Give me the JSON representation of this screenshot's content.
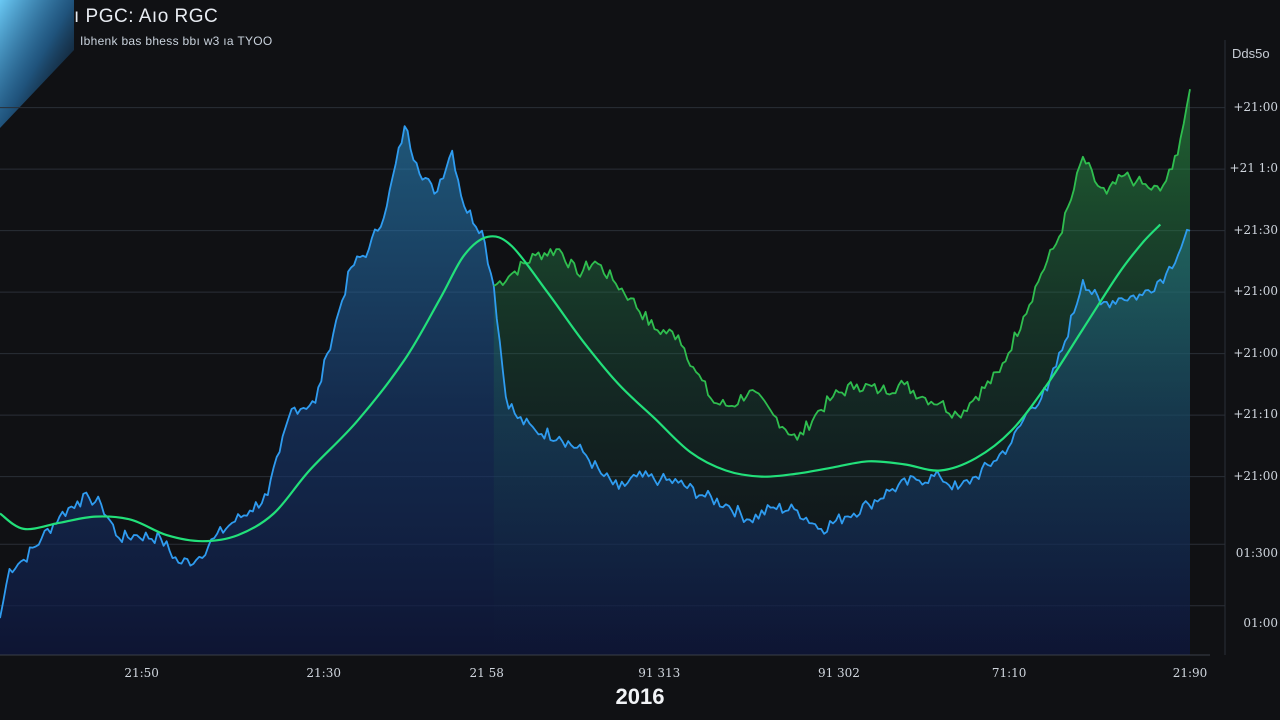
{
  "title": "ı PGC: Aıo RGC",
  "subtitle": "Ibhenk bas bhess bbı w3 ıa TYOO",
  "y_axis_header": "Dds5o",
  "chart_data": {
    "type": "line",
    "x_min": 0,
    "x_max": 100,
    "ylim": [
      0,
      100
    ],
    "xlabel": "2016",
    "x_tick_labels": [
      {
        "x": 11.9,
        "label": "21:50"
      },
      {
        "x": 27.2,
        "label": "21:30"
      },
      {
        "x": 40.9,
        "label": "21 58"
      },
      {
        "x": 55.4,
        "label": "91 313"
      },
      {
        "x": 70.5,
        "label": "91 302"
      },
      {
        "x": 84.8,
        "label": "71:10"
      },
      {
        "x": 100,
        "label": "21:90"
      }
    ],
    "y_tick_labels": [
      {
        "y": 89.0,
        "label": "+21:00"
      },
      {
        "y": 79.0,
        "label": "+21 1:0"
      },
      {
        "y": 69.0,
        "label": "+21:30"
      },
      {
        "y": 59.0,
        "label": "+21:00"
      },
      {
        "y": 49.0,
        "label": "+21:00"
      },
      {
        "y": 39.0,
        "label": "+21:10"
      },
      {
        "y": 29.0,
        "label": "+21:00"
      },
      {
        "y": 16.5,
        "label": "01:300"
      },
      {
        "y": 5.0,
        "label": "01:00"
      }
    ],
    "gridlines": [
      89,
      79,
      69,
      59,
      49,
      39,
      29,
      18,
      8
    ],
    "grid": true,
    "series": [
      {
        "color": "#2f9cf0",
        "fill": true,
        "values": [
          [
            0,
            6
          ],
          [
            0.8,
            14
          ],
          [
            2,
            15.5
          ],
          [
            3.5,
            19
          ],
          [
            5,
            22.5
          ],
          [
            6.5,
            25
          ],
          [
            7.5,
            25.5
          ],
          [
            8.5,
            24.5
          ],
          [
            10,
            19
          ],
          [
            11.5,
            19.5
          ],
          [
            13.5,
            19
          ],
          [
            15,
            15
          ],
          [
            16.5,
            15.5
          ],
          [
            18,
            19
          ],
          [
            19.5,
            21.5
          ],
          [
            21,
            23.5
          ],
          [
            22.5,
            26
          ],
          [
            23.5,
            33
          ],
          [
            24.5,
            40
          ],
          [
            26.5,
            41
          ],
          [
            27.5,
            49
          ],
          [
            28.5,
            56
          ],
          [
            29.5,
            63
          ],
          [
            31,
            66
          ],
          [
            32.5,
            73
          ],
          [
            34,
            86
          ],
          [
            35,
            80
          ],
          [
            36.5,
            75
          ],
          [
            38,
            82
          ],
          [
            39,
            73
          ],
          [
            40.5,
            69
          ],
          [
            41.5,
            60
          ],
          [
            42.5,
            42
          ],
          [
            43.5,
            38.5
          ],
          [
            45,
            36.5
          ],
          [
            47,
            35.5
          ],
          [
            49,
            33
          ],
          [
            50.5,
            29.5
          ],
          [
            52,
            27
          ],
          [
            53.5,
            29
          ],
          [
            55.5,
            28.5
          ],
          [
            57,
            28
          ],
          [
            59,
            26
          ],
          [
            61,
            24.5
          ],
          [
            63,
            22
          ],
          [
            65,
            24
          ],
          [
            67,
            23.5
          ],
          [
            69,
            20.5
          ],
          [
            71,
            22.5
          ],
          [
            73,
            24.5
          ],
          [
            75,
            27
          ],
          [
            77,
            28.5
          ],
          [
            79,
            29
          ],
          [
            80.5,
            27
          ],
          [
            82,
            29
          ],
          [
            83.5,
            31.5
          ],
          [
            85,
            34.5
          ],
          [
            86.5,
            40
          ],
          [
            88,
            43
          ],
          [
            89.5,
            51
          ],
          [
            91,
            61
          ],
          [
            92.5,
            57
          ],
          [
            94,
            58
          ],
          [
            96,
            58.5
          ],
          [
            98,
            62
          ],
          [
            100,
            69
          ]
        ]
      },
      {
        "color": "#2fbe4f",
        "fill": true,
        "values": [
          [
            41.5,
            60
          ],
          [
            43,
            62
          ],
          [
            45,
            65
          ],
          [
            47,
            66
          ],
          [
            48.5,
            62
          ],
          [
            50,
            64
          ],
          [
            51.5,
            61
          ],
          [
            53,
            58
          ],
          [
            55,
            53
          ],
          [
            57,
            52
          ],
          [
            58.5,
            46
          ],
          [
            60,
            41
          ],
          [
            61.5,
            40.5
          ],
          [
            63,
            43
          ],
          [
            65,
            39
          ],
          [
            67,
            35
          ],
          [
            68.5,
            39
          ],
          [
            70,
            42
          ],
          [
            72,
            44
          ],
          [
            74,
            43
          ],
          [
            76,
            44
          ],
          [
            77.5,
            42
          ],
          [
            79,
            41
          ],
          [
            80.5,
            39
          ],
          [
            82,
            42
          ],
          [
            84,
            46
          ],
          [
            86,
            55
          ],
          [
            87.5,
            62
          ],
          [
            89,
            68
          ],
          [
            90,
            74
          ],
          [
            91,
            81
          ],
          [
            92,
            77
          ],
          [
            93,
            75
          ],
          [
            94.5,
            78
          ],
          [
            95.5,
            77
          ],
          [
            96.5,
            76
          ],
          [
            97.5,
            75.5
          ],
          [
            98.5,
            79
          ],
          [
            99.2,
            84
          ],
          [
            100,
            92
          ]
        ]
      },
      {
        "color": "#22e07a",
        "fill": false,
        "values": [
          [
            0,
            23
          ],
          [
            2,
            20.5
          ],
          [
            5,
            21.5
          ],
          [
            8,
            22.5
          ],
          [
            11,
            22
          ],
          [
            14,
            19.5
          ],
          [
            17,
            18.5
          ],
          [
            20,
            19.5
          ],
          [
            23,
            23
          ],
          [
            26,
            30
          ],
          [
            30,
            38
          ],
          [
            34,
            48
          ],
          [
            37,
            58
          ],
          [
            39,
            65
          ],
          [
            41,
            68
          ],
          [
            43,
            66.5
          ],
          [
            46,
            59
          ],
          [
            49,
            51
          ],
          [
            52,
            44
          ],
          [
            55,
            38.5
          ],
          [
            58,
            33
          ],
          [
            61,
            30
          ],
          [
            64,
            29
          ],
          [
            67,
            29.5
          ],
          [
            70,
            30.5
          ],
          [
            73,
            31.5
          ],
          [
            76,
            31
          ],
          [
            79,
            30
          ],
          [
            82,
            32
          ],
          [
            85,
            36.5
          ],
          [
            88,
            44
          ],
          [
            91,
            53
          ],
          [
            94,
            62
          ],
          [
            96,
            67
          ],
          [
            97.5,
            70
          ]
        ]
      }
    ]
  }
}
